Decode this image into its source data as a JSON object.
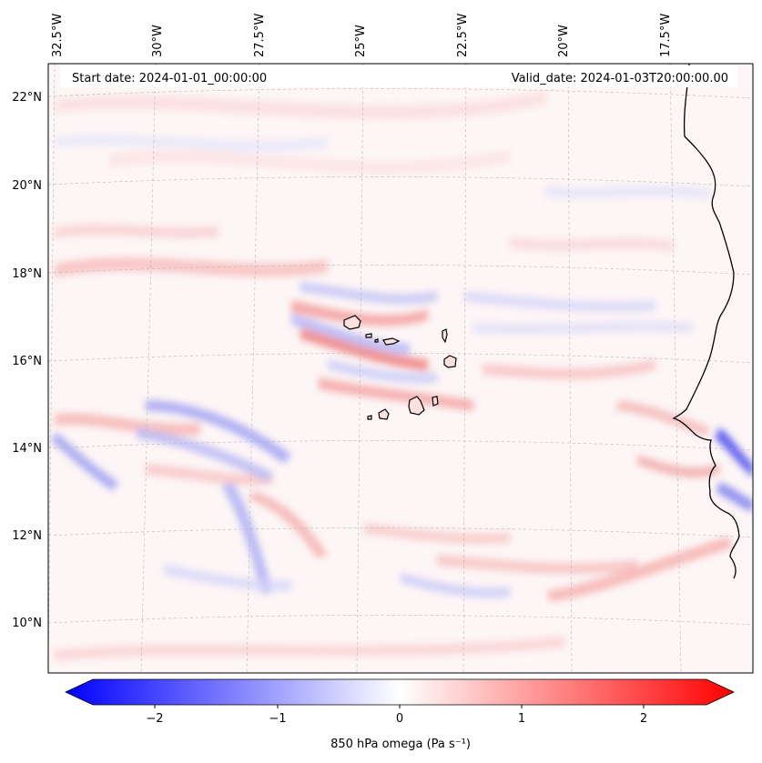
{
  "header": {
    "start_date": "Start date: 2024-01-01_00:00:00",
    "valid_date": "Valid_date: 2024-01-03T20:00:00.00"
  },
  "longitude_labels": [
    "32.5°W",
    "30°W",
    "27.5°W",
    "25°W",
    "22.5°W",
    "20°W",
    "17.5°W"
  ],
  "latitude_labels": [
    "22°N",
    "20°N",
    "18°N",
    "16°N",
    "14°N",
    "12°N",
    "10°N"
  ],
  "colorbar": {
    "label": "850 hPa omega (Pa s⁻¹)",
    "ticks": [
      "−2",
      "−1",
      "0",
      "1",
      "2"
    ],
    "tick_values": [
      -2,
      -1,
      0,
      1,
      2
    ],
    "range": [
      -2.5,
      2.5
    ],
    "colormap": "bwr",
    "color_min": "#0000ff",
    "color_mid": "#ffffff",
    "color_max": "#ff0000"
  },
  "map": {
    "variable": "850 hPa omega",
    "units": "Pa s⁻¹",
    "lon_range": [
      -33,
      -16
    ],
    "lat_range": [
      9,
      23
    ],
    "gridlines": true,
    "coastline_color": "#000000"
  }
}
